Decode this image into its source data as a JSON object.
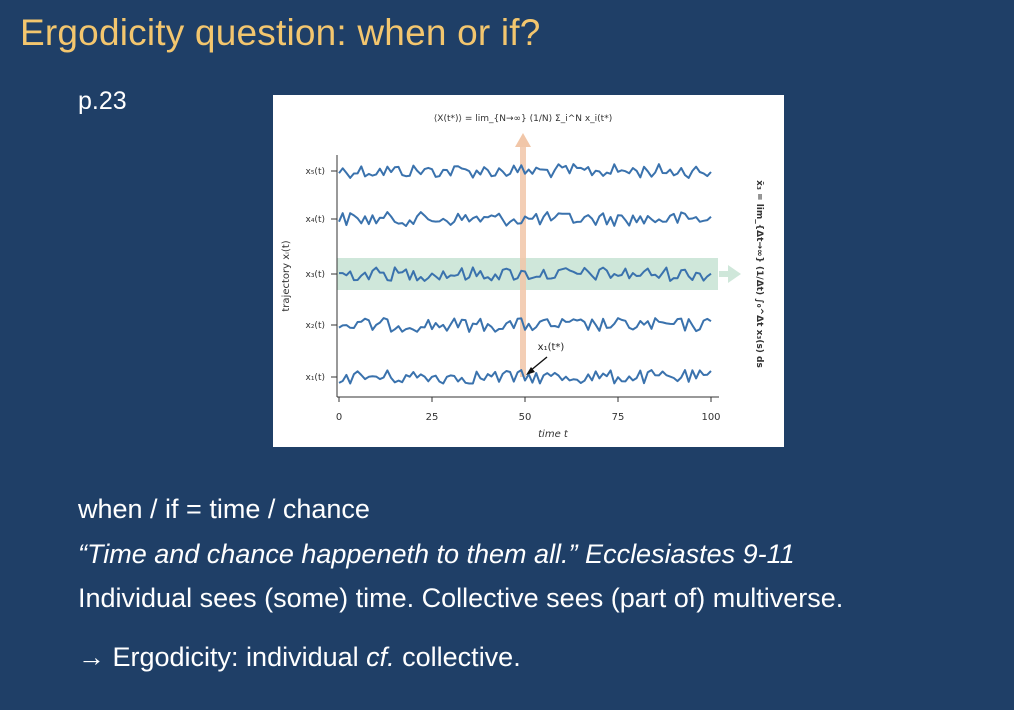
{
  "slide": {
    "title": "Ergodicity question: when or if?",
    "page_ref": "p.23"
  },
  "figure": {
    "ensemble_formula": "⟨X(t*)⟩ = lim_{N→∞} (1/N) Σ_i^N x_i(t*)",
    "time_formula": "x̄₃ = lim_{Δt→∞} (1/Δt) ∫₀^Δt x₃(s) ds",
    "ylabel": "trajectory xᵢ(t)",
    "xlabel": "time t",
    "x_ticks": [
      "0",
      "25",
      "50",
      "75",
      "100"
    ],
    "trajectory_labels": [
      "x₅(t)",
      "x₄(t)",
      "x₃(t)",
      "x₂(t)",
      "x₁(t)"
    ],
    "annotation": "x₁(t*)",
    "highlighted_trajectory": "x₃(t)",
    "marked_time": 50,
    "colors": {
      "line": "#3a72ad",
      "ensemble_arrow": "#f1c6a8",
      "time_band": "#cfe7da",
      "axis": "#333333"
    }
  },
  "text": {
    "line1": "when / if = time / chance",
    "line2": "“Time and chance happeneth to them all.” Ecclesiastes 9-11",
    "line3": "Individual sees (some) time. Collective sees (part of) multiverse.",
    "line4_prefix": "→ Ergodicity: individual ",
    "line4_italic": "cf.",
    "line4_suffix": " collective."
  }
}
